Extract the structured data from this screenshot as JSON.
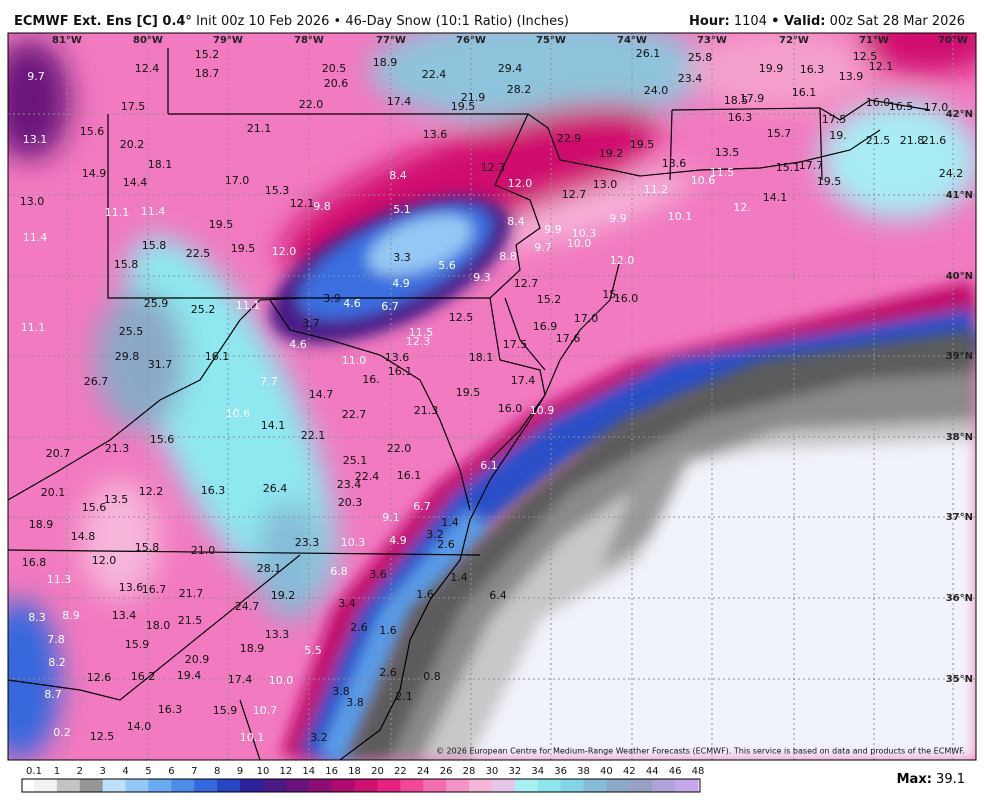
{
  "header": {
    "model": "ECMWF Ext. Ens [C] 0.4°",
    "info": "Init 00z 10 Feb 2026 • 46-Day Snow (10:1 Ratio) (Inches)",
    "hour_label": "Hour:",
    "hour": "1104",
    "valid_label": "• Valid:",
    "valid": "00z Sat 28 Mar 2026"
  },
  "map": {
    "longitudes": [
      "81°W",
      "80°W",
      "79°W",
      "78°W",
      "77°W",
      "76°W",
      "75°W",
      "74°W",
      "73°W",
      "72°W",
      "71°W",
      "70°W"
    ],
    "latitudes": [
      "42°N",
      "41°N",
      "40°N",
      "39°N",
      "38°N",
      "37°N",
      "36°N",
      "35°N"
    ],
    "snow_labels": [
      "9.7",
      "12.4",
      "15.2",
      "18.7",
      "20.5",
      "20.6",
      "18.9",
      "22.4",
      "29.4",
      "28.2",
      "26.1",
      "25.8",
      "23.4",
      "24.0",
      "19.9",
      "16.3",
      "13.9",
      "12.5",
      "12.1",
      "17.5",
      "22.0",
      "17.4",
      "19.5",
      "21.9",
      "18.5",
      "17.9",
      "16.1",
      "16.0",
      "16.5",
      "17.0",
      "13.1",
      "15.6",
      "20.2",
      "21.1",
      "13.6",
      "22.9",
      "19.2",
      "19.5",
      "16.3",
      "15.7",
      "17.5",
      "19.",
      "21.5",
      "21.8",
      "21.6",
      "14.9",
      "18.1",
      "14.4",
      "17.0",
      "15.3",
      "8.4",
      "12.3",
      "12.0",
      "12.7",
      "13.0",
      "13.6",
      "13.5",
      "11.2",
      "10.6",
      "11.5",
      "15.1",
      "17.7",
      "19.5",
      "24.2",
      "13.0",
      "11.1",
      "11.4",
      "19.5",
      "12.1",
      "9.8",
      "5.1",
      "8.4",
      "9.9",
      "10.3",
      "9.9",
      "10.1",
      "12.",
      "14.1",
      "11.4",
      "15.8",
      "22.5",
      "19.5",
      "12.0",
      "3.3",
      "5.6",
      "8.8",
      "9.7",
      "10.0",
      "12.0",
      "15.8",
      "9.3",
      "4.9",
      "12.7",
      "15.2",
      "15.",
      "16.0",
      "25.9",
      "25.2",
      "11.1",
      "3.9",
      "4.6",
      "6.7",
      "12.5",
      "17.0",
      "11.1",
      "25.5",
      "3.7",
      "11.5",
      "12.3",
      "16.9",
      "17.6",
      "17.5",
      "29.8",
      "16.1",
      "4.6",
      "31.7",
      "11.0",
      "13.6",
      "16.1",
      "18.1",
      "16.",
      "26.7",
      "7.7",
      "14.7",
      "19.5",
      "17.4",
      "10.6",
      "21.3",
      "16.0",
      "10.9",
      "22.7",
      "14.1",
      "15.6",
      "22.1",
      "21.3",
      "22.0",
      "20.7",
      "25.1",
      "6.1",
      "22.4",
      "16.1",
      "23.4",
      "26.4",
      "16.3",
      "12.2",
      "20.1",
      "13.5",
      "15.6",
      "20.3",
      "6.7",
      "9.1",
      "18.9",
      "1.4",
      "3.2",
      "14.8",
      "23.3",
      "10.3",
      "4.9",
      "2.6",
      "15.8",
      "21.0",
      "16.8",
      "12.0",
      "6.8",
      "3.6",
      "28.1",
      "1.4",
      "11.3",
      "13.6",
      "16.7",
      "21.7",
      "1.6",
      "6.4",
      "19.2",
      "3.4",
      "24.7",
      "8.3",
      "8.9",
      "13.4",
      "18.0",
      "21.5",
      "2.6",
      "1.6",
      "13.3",
      "7.8",
      "15.9",
      "8.2",
      "5.5",
      "18.9",
      "20.9",
      "12.6",
      "16.2",
      "19.4",
      "17.4",
      "10.0",
      "2.6",
      "0.8",
      "8.7",
      "3.8",
      "3.8",
      "2.1",
      "16.3",
      "15.9",
      "10.7",
      "0.2",
      "14.0",
      "12.5",
      "10.1",
      "3.2"
    ]
  },
  "colorbar": {
    "ticks": [
      "0.1",
      "1",
      "2",
      "3",
      "4",
      "5",
      "6",
      "7",
      "8",
      "9",
      "10",
      "12",
      "14",
      "16",
      "18",
      "20",
      "22",
      "24",
      "26",
      "28",
      "30",
      "32",
      "34",
      "36",
      "38",
      "40",
      "42",
      "44",
      "46",
      "48"
    ],
    "colors": [
      "#f2f2f2",
      "#c4c4c4",
      "#969696",
      "#bfe0f8",
      "#94c8f4",
      "#6aaaf0",
      "#4a8ce8",
      "#3468dc",
      "#2646c4",
      "#2e229c",
      "#4a1a88",
      "#6a127c",
      "#8c0e74",
      "#b00a6e",
      "#d0106e",
      "#e8207e",
      "#f04896",
      "#f26eae",
      "#f494c6",
      "#f6b6da",
      "#e6c6ea",
      "#a8f0f4",
      "#8ee6ee",
      "#82d4e6",
      "#86bcd8",
      "#8ca8c8",
      "#98a0c6",
      "#b0a2d8",
      "#c6a6ea"
    ]
  },
  "footer": {
    "max_label": "Max:",
    "max_value": "39.1",
    "copyright": "© 2026 European Centre for Medium-Range Weather Forecasts (ECMWF). This service is based on data and products of the ECMWF."
  }
}
